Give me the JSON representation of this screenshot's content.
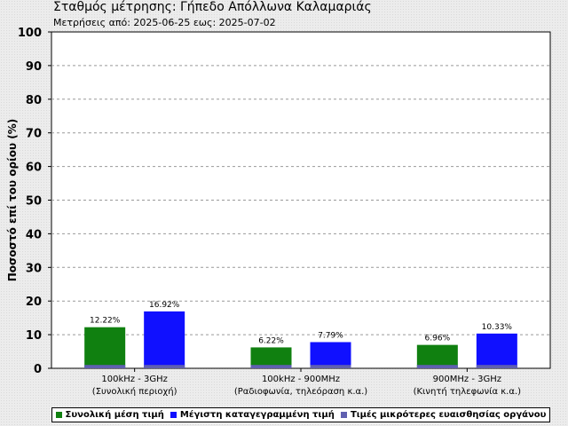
{
  "header": {
    "title": "Σταθμός μέτρησης: Γήπεδο Απόλλωνα Καλαμαριάς",
    "subtitle": "Μετρήσεις από: 2025-06-25 εως: 2025-07-02"
  },
  "chart_data": {
    "type": "bar",
    "ylabel": "Ποσοστό επί του ορίου (%)",
    "ylim": [
      0,
      100
    ],
    "yticks": [
      "0",
      "10",
      "20",
      "30",
      "40",
      "50",
      "60",
      "70",
      "80",
      "90",
      "100"
    ],
    "grid": true,
    "categories": [
      {
        "line1": "100kHz - 3GHz",
        "line2": "(Συνολική περιοχή)"
      },
      {
        "line1": "100kHz - 900MHz",
        "line2": "(Ραδιοφωνία, τηλεόραση κ.α.)"
      },
      {
        "line1": "900MHz - 3GHz",
        "line2": "(Κινητή τηλεφωνία κ.α.)"
      }
    ],
    "series": [
      {
        "name": "Συνολική μέση τιμή",
        "color": "#108010",
        "values": [
          12.22,
          6.22,
          6.96
        ],
        "labels": [
          "12.22%",
          "6.22%",
          "6.96%"
        ]
      },
      {
        "name": "Μέγιστη καταγεγραμμένη τιμή",
        "color": "#1010ff",
        "values": [
          16.92,
          7.79,
          10.33
        ],
        "labels": [
          "16.92%",
          "7.79%",
          "10.33%"
        ]
      }
    ],
    "sensitivity": {
      "name": "Τιμές μικρότερες ευαισθησίας οργάνου",
      "color": "#6060b0",
      "value": 1
    },
    "legend_position": "bottom"
  }
}
